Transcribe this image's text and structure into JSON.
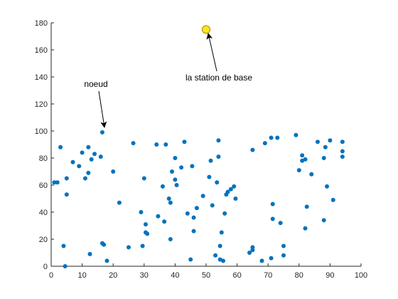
{
  "chart_data": {
    "type": "scatter",
    "title": "",
    "xlabel": "",
    "ylabel": "",
    "xlim": [
      0,
      100
    ],
    "ylim": [
      0,
      180
    ],
    "x_ticks": [
      0,
      10,
      20,
      30,
      40,
      50,
      60,
      70,
      80,
      90,
      100
    ],
    "y_ticks": [
      0,
      20,
      40,
      60,
      80,
      100,
      120,
      140,
      160,
      180
    ],
    "grid": false,
    "colors": {
      "nodes": "#0072BD",
      "base_station_fill": "#FFE51F",
      "base_station_edge": "#A68A00",
      "axes": "#262626"
    },
    "series": [
      {
        "points": [
          [
            1,
            62
          ],
          [
            2,
            62
          ],
          [
            3,
            88
          ],
          [
            4,
            15
          ],
          [
            4.5,
            0
          ],
          [
            5,
            65
          ],
          [
            5,
            53
          ],
          [
            7,
            77
          ],
          [
            9,
            74
          ],
          [
            10,
            84
          ],
          [
            11,
            65
          ],
          [
            12,
            88
          ],
          [
            12,
            69
          ],
          [
            12.5,
            9
          ],
          [
            13,
            79
          ],
          [
            14,
            83
          ],
          [
            16,
            81
          ],
          [
            16.5,
            99
          ],
          [
            16.5,
            17
          ],
          [
            17,
            16
          ],
          [
            18,
            4
          ],
          [
            20,
            70
          ],
          [
            22,
            47
          ],
          [
            25,
            14
          ],
          [
            26.5,
            91
          ],
          [
            29,
            40
          ],
          [
            29.5,
            15
          ],
          [
            30,
            65
          ],
          [
            30.5,
            31
          ],
          [
            30.5,
            25
          ],
          [
            31,
            24
          ],
          [
            34,
            90
          ],
          [
            34.5,
            37
          ],
          [
            36,
            59
          ],
          [
            36.5,
            33
          ],
          [
            37,
            90
          ],
          [
            38,
            50
          ],
          [
            38.5,
            47
          ],
          [
            38.5,
            20
          ],
          [
            39,
            70
          ],
          [
            40,
            80
          ],
          [
            40,
            64
          ],
          [
            40.5,
            60
          ],
          [
            42,
            73
          ],
          [
            43,
            92
          ],
          [
            44,
            39
          ],
          [
            45,
            5
          ],
          [
            45.5,
            74
          ],
          [
            46,
            36
          ],
          [
            46,
            26
          ],
          [
            47,
            43
          ],
          [
            49,
            52
          ],
          [
            51,
            66
          ],
          [
            51.5,
            78
          ],
          [
            52,
            45
          ],
          [
            53,
            8
          ],
          [
            53.5,
            62
          ],
          [
            54,
            81
          ],
          [
            54,
            93
          ],
          [
            54.5,
            15
          ],
          [
            54.5,
            5
          ],
          [
            55,
            25
          ],
          [
            55.5,
            4
          ],
          [
            56,
            39
          ],
          [
            56.5,
            53
          ],
          [
            57,
            55
          ],
          [
            58,
            57
          ],
          [
            59,
            59
          ],
          [
            59.5,
            50
          ],
          [
            64,
            10
          ],
          [
            65,
            86
          ],
          [
            65,
            14
          ],
          [
            65,
            12
          ],
          [
            68,
            4
          ],
          [
            69,
            91
          ],
          [
            71,
            6
          ],
          [
            71,
            95
          ],
          [
            71.5,
            46
          ],
          [
            71.5,
            35
          ],
          [
            73,
            95
          ],
          [
            74,
            32
          ],
          [
            75,
            15
          ],
          [
            75,
            8
          ],
          [
            79,
            97
          ],
          [
            80,
            71
          ],
          [
            81,
            82
          ],
          [
            81,
            78
          ],
          [
            82,
            79
          ],
          [
            82,
            28
          ],
          [
            82.5,
            44
          ],
          [
            84,
            68
          ],
          [
            86,
            92
          ],
          [
            88,
            80
          ],
          [
            88,
            34
          ],
          [
            88.5,
            88
          ],
          [
            89,
            59
          ],
          [
            90,
            93
          ],
          [
            91,
            49
          ],
          [
            94,
            92
          ],
          [
            94,
            85
          ],
          [
            94,
            81
          ]
        ]
      },
      {
        "points": [
          [
            50,
            175
          ]
        ]
      }
    ],
    "annotations": [
      {
        "text": "noeud",
        "target": [
          16.5,
          99
        ]
      },
      {
        "text": "la station de base",
        "target": [
          50,
          175
        ]
      }
    ]
  }
}
